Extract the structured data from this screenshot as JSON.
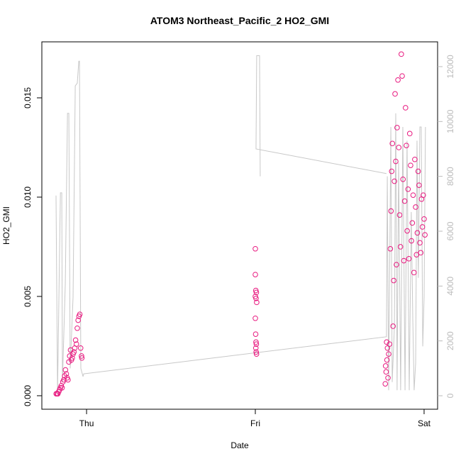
{
  "chart_data": {
    "type": "scatter",
    "title": "ATOM3 Northeast_Pacific_2 HO2_GMI",
    "xlabel": "Date",
    "ylabel": "HO2_GMI",
    "color": "#e8197f",
    "x": [
      -0.18,
      -0.175,
      -0.17,
      -0.165,
      -0.16,
      -0.155,
      -0.15,
      -0.145,
      -0.14,
      -0.135,
      -0.13,
      -0.125,
      -0.12,
      -0.115,
      -0.11,
      -0.105,
      -0.1,
      -0.095,
      -0.09,
      -0.085,
      -0.08,
      -0.075,
      -0.07,
      -0.065,
      -0.06,
      -0.055,
      -0.05,
      -0.045,
      -0.04,
      -0.035,
      -0.03,
      -0.028,
      1.0,
      1.0,
      1.003,
      1.006,
      1.0,
      1.004,
      1.008,
      1.0,
      1.002,
      1.004,
      1.006,
      1.003,
      1.005,
      1.007,
      1.77,
      1.772,
      1.775,
      1.778,
      1.78,
      1.783,
      1.786,
      1.79,
      1.795,
      1.8,
      1.804,
      1.808,
      1.812,
      1.816,
      1.82,
      1.824,
      1.828,
      1.832,
      1.836,
      1.84,
      1.845,
      1.85,
      1.855,
      1.86,
      1.865,
      1.87,
      1.875,
      1.88,
      1.885,
      1.89,
      1.895,
      1.9,
      1.905,
      1.91,
      1.915,
      1.92,
      1.925,
      1.93,
      1.935,
      1.94,
      1.945,
      1.95,
      1.955,
      1.96,
      1.965,
      1.97,
      1.975,
      1.98,
      1.985,
      1.99,
      1.995,
      2.0,
      2.005
    ],
    "values": [
      0.0001,
      0.0001,
      0.0001,
      0.0002,
      0.0003,
      0.0004,
      0.0005,
      0.0004,
      0.0007,
      0.0008,
      0.001,
      0.0013,
      0.0011,
      0.0009,
      0.0008,
      0.0017,
      0.002,
      0.0023,
      0.0018,
      0.0019,
      0.0021,
      0.0022,
      0.0024,
      0.0028,
      0.0026,
      0.0034,
      0.0038,
      0.004,
      0.0041,
      0.0024,
      0.002,
      0.0019,
      0.0074,
      0.0061,
      0.0053,
      0.0052,
      0.005,
      0.0049,
      0.0047,
      0.0039,
      0.0031,
      0.0027,
      0.0026,
      0.0024,
      0.0022,
      0.0021,
      0.0006,
      0.0015,
      0.0012,
      0.0027,
      0.0018,
      0.0024,
      0.0009,
      0.0021,
      0.0026,
      0.0074,
      0.0093,
      0.0113,
      0.0127,
      0.0035,
      0.0058,
      0.0108,
      0.0152,
      0.0118,
      0.0066,
      0.0135,
      0.0159,
      0.0125,
      0.0091,
      0.0075,
      0.0172,
      0.0161,
      0.0109,
      0.0068,
      0.0098,
      0.0145,
      0.0126,
      0.0083,
      0.0104,
      0.0069,
      0.0132,
      0.0116,
      0.0078,
      0.0087,
      0.0101,
      0.0062,
      0.0119,
      0.0095,
      0.0071,
      0.0082,
      0.0113,
      0.0106,
      0.0077,
      0.0072,
      0.0099,
      0.0085,
      0.0101,
      0.0089,
      0.0081
    ],
    "xlim": [
      -0.265,
      2.08
    ],
    "xticks": [
      {
        "value": 0,
        "label": "Thu"
      },
      {
        "value": 1,
        "label": "Fri"
      },
      {
        "value": 2,
        "label": "Sat"
      }
    ],
    "ylim": [
      -0.00068,
      0.01782
    ],
    "yticks": [
      {
        "value": 0,
        "label": "0.000"
      },
      {
        "value": 0.005,
        "label": "0.005"
      },
      {
        "value": 0.01,
        "label": "0.010"
      },
      {
        "value": 0.015,
        "label": "0.015"
      }
    ],
    "y2lim": [
      -491,
      12904
    ],
    "y2ticks": [
      0,
      2000,
      4000,
      6000,
      8000,
      10000,
      12000
    ],
    "line": {
      "axis": "y2",
      "color": "#c8c8c8",
      "x": [
        -0.181,
        -0.172,
        -0.155,
        -0.147,
        -0.143,
        -0.126,
        -0.113,
        -0.105,
        -0.097,
        -0.08,
        -0.067,
        -0.055,
        -0.046,
        -0.042,
        -0.034,
        -0.021,
        -0.017,
        1.777,
        1.782,
        1.79,
        1.803,
        1.811,
        1.824,
        1.832,
        1.84,
        1.849,
        1.861,
        1.874,
        1.887,
        1.899,
        1.912,
        1.924,
        1.933,
        1.941,
        1.95,
        1.958,
        1.966,
        1.975,
        1.983,
        1.992,
        2.0,
        2.008,
        null,
        1.029,
        1.025,
        1.008,
        1.004,
        1.777
      ],
      "values": [
        7300,
        100,
        7400,
        7400,
        500,
        4100,
        10300,
        10300,
        1000,
        3600,
        11300,
        11400,
        12200,
        12200,
        1000,
        700,
        800,
        2150,
        8000,
        200,
        9800,
        500,
        2500,
        10300,
        200,
        8500,
        200,
        9800,
        200,
        9300,
        200,
        6700,
        2800,
        200,
        1200,
        9300,
        4300,
        9800,
        9800,
        1800,
        3600,
        9800,
        null,
        8000,
        12400,
        12400,
        9000,
        8100
      ]
    }
  }
}
